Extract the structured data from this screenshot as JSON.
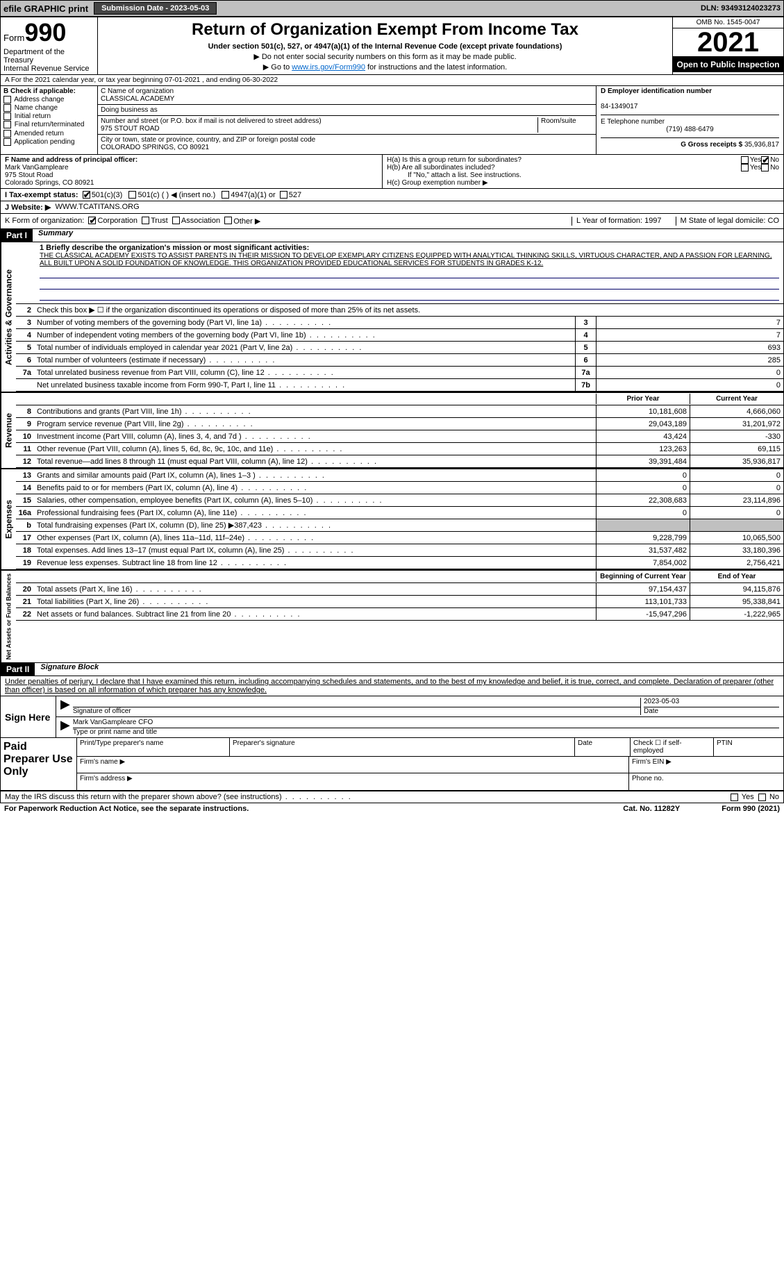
{
  "topbar": {
    "efile": "efile GRAPHIC print",
    "submission": "Submission Date - 2023-05-03",
    "dln": "DLN: 93493124023273"
  },
  "header": {
    "form_label": "Form",
    "form_num": "990",
    "title": "Return of Organization Exempt From Income Tax",
    "subtitle": "Under section 501(c), 527, or 4947(a)(1) of the Internal Revenue Code (except private foundations)",
    "note1": "▶ Do not enter social security numbers on this form as it may be made public.",
    "note2_pre": "▶ Go to ",
    "note2_link": "www.irs.gov/Form990",
    "note2_post": " for instructions and the latest information.",
    "dept": "Department of the Treasury",
    "irs": "Internal Revenue Service",
    "omb": "OMB No. 1545-0047",
    "year": "2021",
    "open": "Open to Public Inspection"
  },
  "row_a": "A For the 2021 calendar year, or tax year beginning 07-01-2021   , and ending 06-30-2022",
  "section_b": {
    "title": "B Check if applicable:",
    "opts": [
      "Address change",
      "Name change",
      "Initial return",
      "Final return/terminated",
      "Amended return",
      "Application pending"
    ]
  },
  "section_c": {
    "name_label": "C Name of organization",
    "name": "CLASSICAL ACADEMY",
    "dba_label": "Doing business as",
    "addr_label": "Number and street (or P.O. box if mail is not delivered to street address)",
    "room_label": "Room/suite",
    "addr": "975 STOUT ROAD",
    "city_label": "City or town, state or province, country, and ZIP or foreign postal code",
    "city": "COLORADO SPRINGS, CO  80921"
  },
  "section_d": {
    "ein_label": "D Employer identification number",
    "ein": "84-1349017",
    "tel_label": "E Telephone number",
    "tel": "(719) 488-6479",
    "gross_label": "G Gross receipts $",
    "gross": "35,936,817"
  },
  "section_f": {
    "label": "F  Name and address of principal officer:",
    "name": "Mark VanGampleare",
    "addr1": "975 Stout Road",
    "addr2": "Colorado Springs, CO  80921"
  },
  "section_h": {
    "ha": "H(a)  Is this a group return for subordinates?",
    "hb": "H(b)  Are all subordinates included?",
    "hb_note": "If \"No,\" attach a list. See instructions.",
    "hc": "H(c)  Group exemption number ▶",
    "yes": "Yes",
    "no": "No"
  },
  "section_i": {
    "label": "I   Tax-exempt status:",
    "o1": "501(c)(3)",
    "o2": "501(c) (   ) ◀ (insert no.)",
    "o3": "4947(a)(1) or",
    "o4": "527"
  },
  "section_j": {
    "label": "J   Website: ▶",
    "val": "WWW.TCATITANS.ORG"
  },
  "section_k": {
    "label": "K Form of organization:",
    "o1": "Corporation",
    "o2": "Trust",
    "o3": "Association",
    "o4": "Other ▶",
    "l": "L Year of formation: 1997",
    "m": "M State of legal domicile: CO"
  },
  "part1": {
    "label": "Part I",
    "title": "Summary"
  },
  "mission": {
    "line1": "1  Briefly describe the organization's mission or most significant activities:",
    "text": "THE CLASSICAL ACADEMY EXISTS TO ASSIST PARENTS IN THEIR MISSION TO DEVELOP EXEMPLARY CITIZENS EQUIPPED WITH ANALYTICAL THINKING SKILLS, VIRTUOUS CHARACTER, AND A PASSION FOR LEARNING, ALL BUILT UPON A SOLID FOUNDATION OF KNOWLEDGE. THIS ORGANIZATION PROVIDED EDUCATIONAL SERVICES FOR STUDENTS IN GRADES K-12."
  },
  "governance": {
    "label": "Activities & Governance",
    "line2": "Check this box ▶ ☐  if the organization discontinued its operations or disposed of more than 25% of its net assets.",
    "rows": [
      {
        "n": "3",
        "d": "Number of voting members of the governing body (Part VI, line 1a)",
        "bn": "3",
        "v": "7"
      },
      {
        "n": "4",
        "d": "Number of independent voting members of the governing body (Part VI, line 1b)",
        "bn": "4",
        "v": "7"
      },
      {
        "n": "5",
        "d": "Total number of individuals employed in calendar year 2021 (Part V, line 2a)",
        "bn": "5",
        "v": "693"
      },
      {
        "n": "6",
        "d": "Total number of volunteers (estimate if necessary)",
        "bn": "6",
        "v": "285"
      },
      {
        "n": "7a",
        "d": "Total unrelated business revenue from Part VIII, column (C), line 12",
        "bn": "7a",
        "v": "0"
      },
      {
        "n": "",
        "d": "Net unrelated business taxable income from Form 990-T, Part I, line 11",
        "bn": "7b",
        "v": "0"
      }
    ]
  },
  "col_headers": {
    "prior": "Prior Year",
    "current": "Current Year",
    "begin": "Beginning of Current Year",
    "end": "End of Year"
  },
  "revenue": {
    "label": "Revenue",
    "rows": [
      {
        "n": "8",
        "d": "Contributions and grants (Part VIII, line 1h)",
        "p": "10,181,608",
        "c": "4,666,060"
      },
      {
        "n": "9",
        "d": "Program service revenue (Part VIII, line 2g)",
        "p": "29,043,189",
        "c": "31,201,972"
      },
      {
        "n": "10",
        "d": "Investment income (Part VIII, column (A), lines 3, 4, and 7d )",
        "p": "43,424",
        "c": "-330"
      },
      {
        "n": "11",
        "d": "Other revenue (Part VIII, column (A), lines 5, 6d, 8c, 9c, 10c, and 11e)",
        "p": "123,263",
        "c": "69,115"
      },
      {
        "n": "12",
        "d": "Total revenue—add lines 8 through 11 (must equal Part VIII, column (A), line 12)",
        "p": "39,391,484",
        "c": "35,936,817"
      }
    ]
  },
  "expenses": {
    "label": "Expenses",
    "rows": [
      {
        "n": "13",
        "d": "Grants and similar amounts paid (Part IX, column (A), lines 1–3 )",
        "p": "0",
        "c": "0"
      },
      {
        "n": "14",
        "d": "Benefits paid to or for members (Part IX, column (A), line 4)",
        "p": "0",
        "c": "0"
      },
      {
        "n": "15",
        "d": "Salaries, other compensation, employee benefits (Part IX, column (A), lines 5–10)",
        "p": "22,308,683",
        "c": "23,114,896"
      },
      {
        "n": "16a",
        "d": "Professional fundraising fees (Part IX, column (A), line 11e)",
        "p": "0",
        "c": "0"
      },
      {
        "n": "b",
        "d": "Total fundraising expenses (Part IX, column (D), line 25) ▶387,423",
        "p": "",
        "c": "",
        "shade": true
      },
      {
        "n": "17",
        "d": "Other expenses (Part IX, column (A), lines 11a–11d, 11f–24e)",
        "p": "9,228,799",
        "c": "10,065,500"
      },
      {
        "n": "18",
        "d": "Total expenses. Add lines 13–17 (must equal Part IX, column (A), line 25)",
        "p": "31,537,482",
        "c": "33,180,396"
      },
      {
        "n": "19",
        "d": "Revenue less expenses. Subtract line 18 from line 12",
        "p": "7,854,002",
        "c": "2,756,421"
      }
    ]
  },
  "netassets": {
    "label": "Net Assets or Fund Balances",
    "rows": [
      {
        "n": "20",
        "d": "Total assets (Part X, line 16)",
        "p": "97,154,437",
        "c": "94,115,876"
      },
      {
        "n": "21",
        "d": "Total liabilities (Part X, line 26)",
        "p": "113,101,733",
        "c": "95,338,841"
      },
      {
        "n": "22",
        "d": "Net assets or fund balances. Subtract line 21 from line 20",
        "p": "-15,947,296",
        "c": "-1,222,965"
      }
    ]
  },
  "part2": {
    "label": "Part II",
    "title": "Signature Block"
  },
  "sig": {
    "penalty": "Under penalties of perjury, I declare that I have examined this return, including accompanying schedules and statements, and to the best of my knowledge and belief, it is true, correct, and complete. Declaration of preparer (other than officer) is based on all information of which preparer has any knowledge.",
    "sign_here": "Sign Here",
    "sig_officer": "Signature of officer",
    "date": "Date",
    "date_val": "2023-05-03",
    "name": "Mark VanGampleare  CFO",
    "name_label": "Type or print name and title"
  },
  "prep": {
    "label": "Paid Preparer Use Only",
    "c1": "Print/Type preparer's name",
    "c2": "Preparer's signature",
    "c3": "Date",
    "c4": "Check ☐ if self-employed",
    "c5": "PTIN",
    "firm_name": "Firm's name   ▶",
    "firm_ein": "Firm's EIN ▶",
    "firm_addr": "Firm's address ▶",
    "phone": "Phone no."
  },
  "footer": {
    "discuss": "May the IRS discuss this return with the preparer shown above? (see instructions)",
    "yes": "Yes",
    "no": "No",
    "paperwork": "For Paperwork Reduction Act Notice, see the separate instructions.",
    "cat": "Cat. No. 11282Y",
    "form": "Form 990 (2021)"
  }
}
